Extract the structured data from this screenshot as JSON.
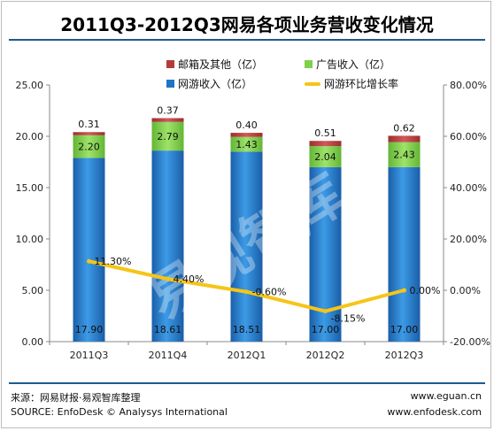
{
  "title": "2011Q3-2012Q3网易各项业务营收变化情况",
  "watermark": "易观智库",
  "legend": {
    "other": "邮箱及其他（亿）",
    "ads": "广告收入（亿）",
    "games": "网游收入（亿）",
    "growth": "网游环比增长率"
  },
  "footer": {
    "source_cn": "来源：网易财报·易观智库整理",
    "source_en": "SOURCE: EnfoDesk © Analysys International",
    "url1": "www.eguan.cn",
    "url2": "www.enfodesk.com"
  },
  "colors": {
    "games": "#1f74c4",
    "ads": "#7fd04a",
    "other": "#b53b3b",
    "growth_line": "#f5c518",
    "rule": "#1f5a8f"
  },
  "chart_data": {
    "type": "bar",
    "stacked": true,
    "categories": [
      "2011Q3",
      "2011Q4",
      "2012Q1",
      "2012Q2",
      "2012Q3"
    ],
    "series": [
      {
        "name": "网游收入（亿）",
        "values": [
          17.9,
          18.61,
          18.51,
          17.0,
          17.0
        ],
        "labels": [
          "17.90",
          "18.61",
          "18.51",
          "17.00",
          "17.00"
        ]
      },
      {
        "name": "广告收入（亿）",
        "values": [
          2.2,
          2.79,
          1.43,
          2.04,
          2.43
        ],
        "labels": [
          "2.20",
          "2.79",
          "1.43",
          "2.04",
          "2.43"
        ]
      },
      {
        "name": "邮箱及其他（亿）",
        "values": [
          0.31,
          0.37,
          0.4,
          0.51,
          0.62
        ],
        "labels": [
          "0.31",
          "0.37",
          "0.40",
          "0.51",
          "0.62"
        ]
      }
    ],
    "line_series": {
      "name": "网游环比增长率",
      "axis": "right",
      "values": [
        11.3,
        4.4,
        -0.6,
        -8.15,
        0.0
      ],
      "labels": [
        "11.30%",
        "4.40%",
        "-0.60%",
        "-8.15%",
        "0.00%"
      ]
    },
    "left_axis": {
      "min": 0,
      "max": 25,
      "ticks": [
        "0.00",
        "5.00",
        "10.00",
        "15.00",
        "20.00",
        "25.00"
      ]
    },
    "right_axis": {
      "min": -20,
      "max": 80,
      "ticks": [
        "-20.00%",
        "0.00%",
        "20.00%",
        "40.00%",
        "60.00%",
        "80.00%"
      ]
    }
  }
}
